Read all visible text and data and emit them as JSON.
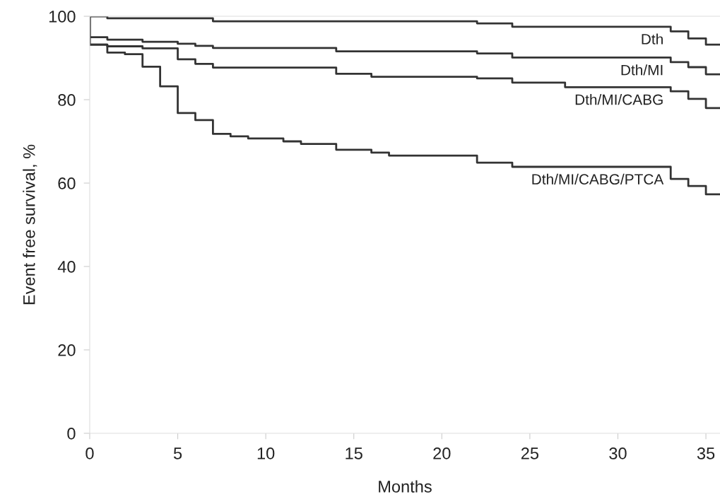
{
  "chart_data": {
    "type": "step",
    "xlabel": "Months",
    "ylabel": "Event free survival, %",
    "xlim": [
      0,
      35.8
    ],
    "xticks": [
      0,
      5,
      10,
      15,
      20,
      25,
      30,
      35
    ],
    "ylim": [
      0,
      100
    ],
    "yticks": [
      0,
      20,
      40,
      60,
      80,
      100
    ],
    "grid": false,
    "legend": false,
    "marker": "none",
    "line_style": "solid",
    "series": [
      {
        "name": "Dth",
        "color": "#333333",
        "x": [
          0,
          1,
          7,
          22,
          24,
          33,
          34,
          35,
          35.8
        ],
        "values": [
          100,
          99.5,
          98.8,
          98.3,
          97.5,
          96.4,
          94.7,
          93.2,
          93.2
        ]
      },
      {
        "name": "Dth/MI",
        "color": "#333333",
        "x": [
          0,
          0,
          1,
          3,
          5,
          6,
          7,
          14,
          22,
          24,
          33,
          34,
          35,
          35.8
        ],
        "values": [
          100,
          95.0,
          94.4,
          93.9,
          93.4,
          92.9,
          92.4,
          91.6,
          91.1,
          90.1,
          89.0,
          87.8,
          86.1,
          86.1
        ]
      },
      {
        "name": "Dth/MI/CABG",
        "color": "#333333",
        "x": [
          0,
          0,
          1,
          3,
          5,
          6,
          7,
          14,
          16,
          22,
          24,
          27,
          33,
          34,
          35,
          35.8
        ],
        "values": [
          100,
          93.2,
          92.8,
          92.3,
          89.7,
          88.6,
          87.7,
          86.2,
          85.5,
          85.1,
          84.1,
          83.0,
          82.0,
          80.2,
          78.0,
          78.0
        ]
      },
      {
        "name": "Dth/MI/CABG/PTCA",
        "color": "#333333",
        "x": [
          0,
          0,
          1,
          2,
          3,
          4,
          5,
          6,
          7,
          8,
          9,
          11,
          12,
          14,
          16,
          17,
          22,
          24,
          33,
          34,
          35,
          35.8
        ],
        "values": [
          100,
          93.2,
          91.3,
          90.9,
          87.9,
          83.2,
          76.8,
          75.1,
          71.8,
          71.2,
          70.7,
          70.0,
          69.4,
          68.0,
          67.3,
          66.6,
          64.9,
          63.9,
          61.0,
          59.3,
          57.3,
          57.3
        ]
      }
    ]
  }
}
